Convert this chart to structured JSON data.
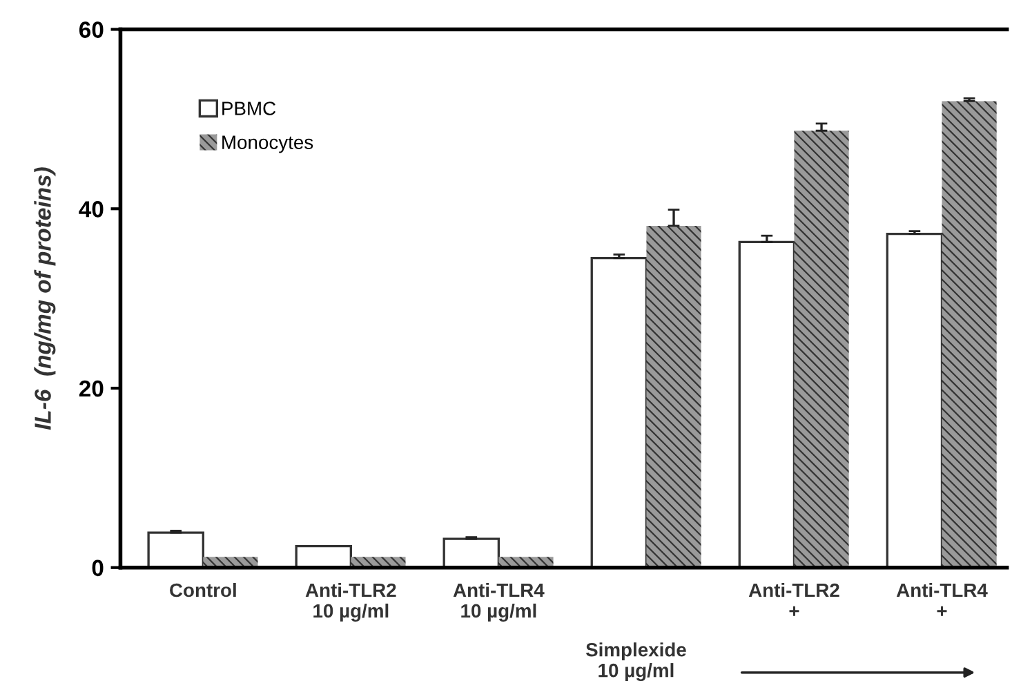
{
  "chart_data": {
    "type": "bar",
    "ylabel": "IL-6  (ng/mg of proteins)",
    "categories": [
      "Control",
      "Anti-TLR2\n10 µg/ml",
      "Anti-TLR4\n10 µg/ml",
      null,
      "Anti-TLR2\n+",
      "Anti-TLR4\n+"
    ],
    "series": [
      {
        "name": "PBMC",
        "color": "#ffffff",
        "values": [
          3.9,
          2.4,
          3.2,
          34.5,
          36.3,
          37.2
        ],
        "errors": [
          0.2,
          null,
          0.2,
          0.4,
          0.7,
          0.3
        ]
      },
      {
        "name": "Monocytes",
        "color": "#9a9a9a",
        "values": [
          1.2,
          1.2,
          1.2,
          38.1,
          48.7,
          52.0
        ],
        "errors": [
          null,
          null,
          null,
          1.8,
          0.8,
          0.3
        ]
      }
    ],
    "ylim": [
      0,
      60
    ],
    "yticks": [
      0,
      20,
      40,
      60
    ],
    "grid": false,
    "legend": "top left",
    "annotations": [
      "Simplexide\n10 µg/ml"
    ]
  }
}
